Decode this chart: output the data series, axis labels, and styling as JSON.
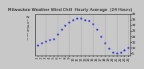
{
  "title": "Milwaukee Weather Wind Chill  Hourly Average  (24 Hours)",
  "hours": [
    1,
    2,
    3,
    4,
    5,
    6,
    7,
    8,
    9,
    10,
    11,
    12,
    13,
    14,
    15,
    16,
    17,
    18,
    19,
    20,
    21,
    22,
    23,
    24
  ],
  "wind_chill": [
    12,
    14,
    16,
    17,
    18,
    22,
    26,
    30,
    33,
    35,
    36,
    36,
    35,
    34,
    31,
    26,
    20,
    14,
    9,
    6,
    5,
    6,
    8,
    10
  ],
  "dot_color": "#0000dd",
  "bg_color": "#c8c8c8",
  "plot_bg": "#c8c8c8",
  "grid_color": "#888888",
  "title_color": "#000000",
  "title_fontsize": 3.8,
  "tick_fontsize": 3.0,
  "ylim": [
    3,
    40
  ],
  "ytick_vals": [
    5,
    10,
    15,
    20,
    25,
    30,
    35,
    40
  ],
  "ytick_labels": [
    "5",
    "10",
    "15",
    "20",
    "25",
    "30",
    "35",
    "40"
  ],
  "vgrid_hours": [
    3,
    6,
    9,
    12,
    15,
    18,
    21,
    24
  ],
  "xtick_labels": [
    "1",
    "2",
    "3",
    "4",
    "5",
    "6",
    "7",
    "8",
    "9",
    "10",
    "11",
    "12",
    "13",
    "14",
    "15",
    "16",
    "17",
    "18",
    "19",
    "20",
    "21",
    "22",
    "23",
    "24"
  ]
}
